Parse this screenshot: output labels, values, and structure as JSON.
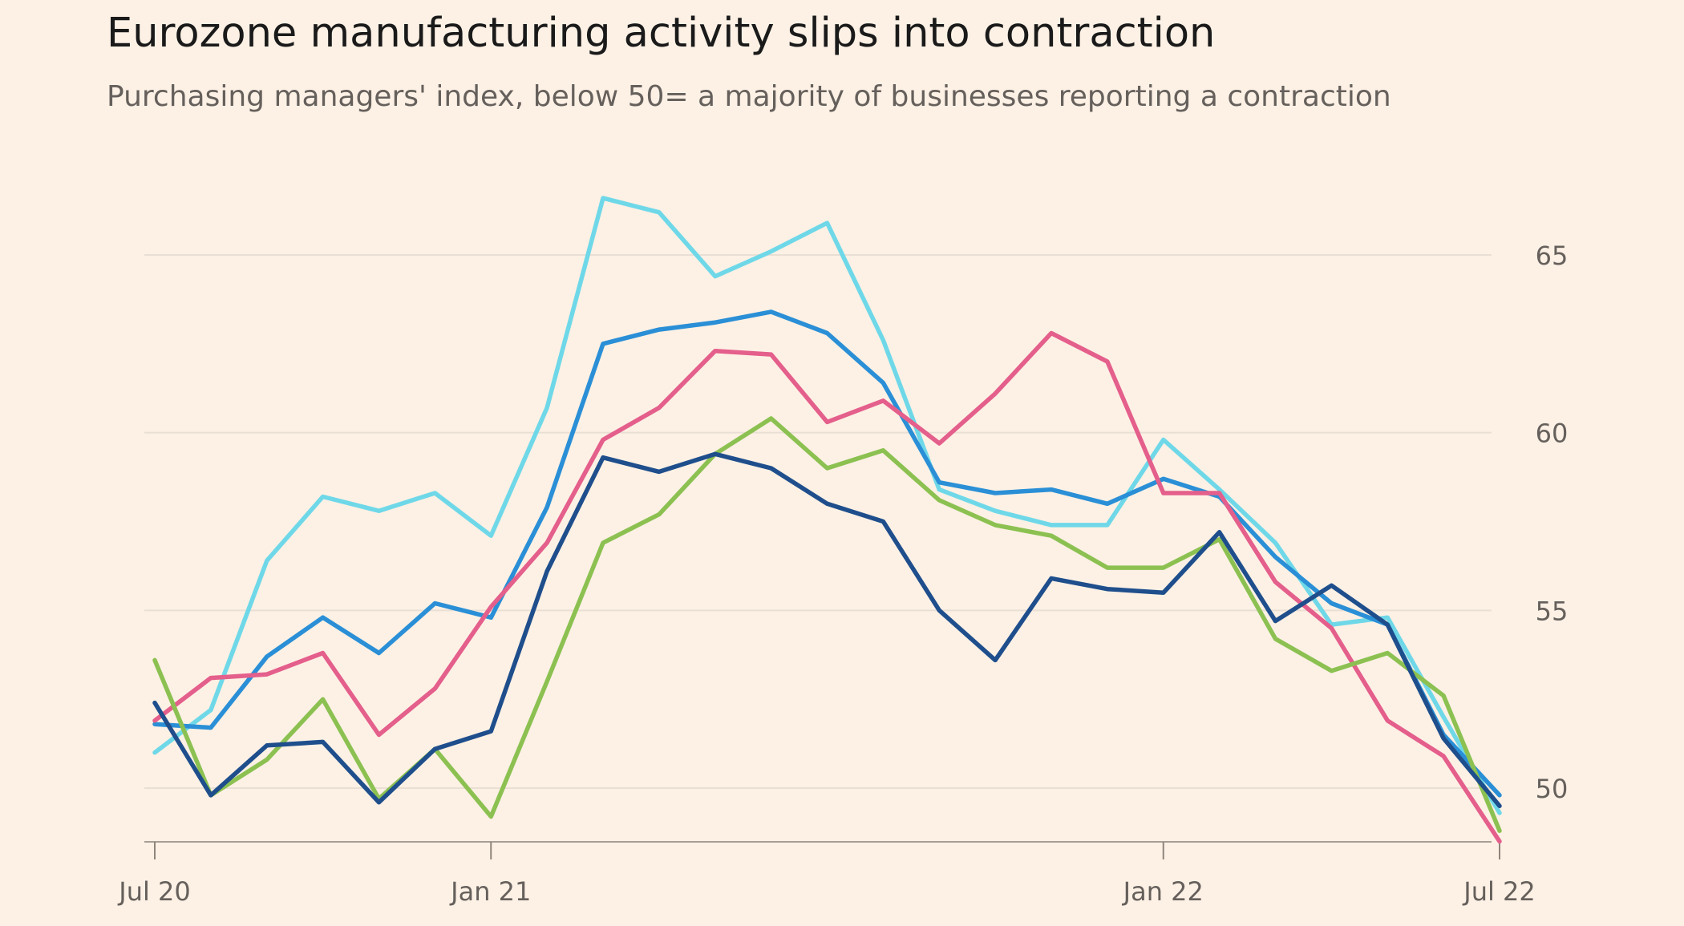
{
  "title": "Eurozone manufacturing activity slips into contraction",
  "subtitle": "Purchasing managers' index, below 50= a majority of businesses reporting a contraction",
  "chart_data": {
    "type": "line",
    "title": "Eurozone manufacturing activity slips into contraction",
    "subtitle": "Purchasing managers' index, below 50= a majority of businesses reporting a contraction",
    "xlabel": "",
    "ylabel": "",
    "ylim": [
      48.5,
      67
    ],
    "y_ticks": [
      50,
      55,
      60,
      65
    ],
    "y_tick_labels": [
      "50",
      "55",
      "60",
      "65"
    ],
    "x_tick_indices": [
      0,
      6,
      18,
      24
    ],
    "x_tick_labels": [
      "Jul 20",
      "Jan 21",
      "Jan 22",
      "Jul 22"
    ],
    "grid": true,
    "legend": "none",
    "x": [
      "Jul 20",
      "Aug 20",
      "Sep 20",
      "Oct 20",
      "Nov 20",
      "Dec 20",
      "Jan 21",
      "Feb 21",
      "Mar 21",
      "Apr 21",
      "May 21",
      "Jun 21",
      "Jul 21",
      "Aug 21",
      "Sep 21",
      "Oct 21",
      "Nov 21",
      "Dec 21",
      "Jan 22",
      "Feb 22",
      "Mar 22",
      "Apr 22",
      "May 22",
      "Jun 22",
      "Jul 22"
    ],
    "series": [
      {
        "name": "series-light-blue",
        "color": "#6FD8E8",
        "values": [
          51.0,
          52.2,
          56.4,
          58.2,
          57.8,
          58.3,
          57.1,
          60.7,
          66.6,
          66.2,
          64.4,
          65.1,
          65.9,
          62.6,
          58.4,
          57.8,
          57.4,
          57.4,
          59.8,
          58.4,
          56.9,
          54.6,
          54.8,
          52.0,
          49.3
        ]
      },
      {
        "name": "series-mid-blue",
        "color": "#2A8FD6",
        "values": [
          51.8,
          51.7,
          53.7,
          54.8,
          53.8,
          55.2,
          54.8,
          57.9,
          62.5,
          62.9,
          63.1,
          63.4,
          62.8,
          61.4,
          58.6,
          58.3,
          58.4,
          58.0,
          58.7,
          58.2,
          56.5,
          55.2,
          54.6,
          51.5,
          49.8
        ]
      },
      {
        "name": "series-pink",
        "color": "#E45F8B",
        "values": [
          51.9,
          53.1,
          53.2,
          53.8,
          51.5,
          52.8,
          55.1,
          56.9,
          59.8,
          60.7,
          62.3,
          62.2,
          60.3,
          60.9,
          59.7,
          61.1,
          62.8,
          62.0,
          58.3,
          58.3,
          55.8,
          54.5,
          51.9,
          50.9,
          48.5
        ]
      },
      {
        "name": "series-green",
        "color": "#8CC152",
        "values": [
          53.6,
          49.8,
          50.8,
          52.5,
          49.7,
          51.1,
          49.2,
          53.0,
          56.9,
          57.7,
          59.4,
          60.4,
          59.0,
          59.5,
          58.1,
          57.4,
          57.1,
          56.2,
          56.2,
          57.0,
          54.2,
          53.3,
          53.8,
          52.6,
          48.8
        ]
      },
      {
        "name": "series-dark-blue",
        "color": "#1F4E8C",
        "values": [
          52.4,
          49.8,
          51.2,
          51.3,
          49.6,
          51.1,
          51.6,
          56.1,
          59.3,
          58.9,
          59.4,
          59.0,
          58.0,
          57.5,
          55.0,
          53.6,
          55.9,
          55.6,
          55.5,
          57.2,
          54.7,
          55.7,
          54.6,
          51.4,
          49.5
        ]
      }
    ]
  }
}
